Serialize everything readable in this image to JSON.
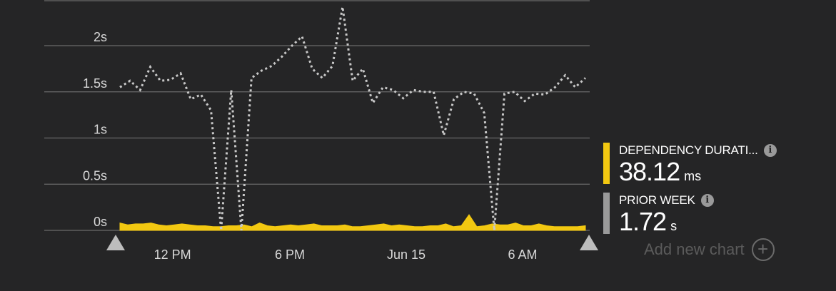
{
  "chart_data": {
    "type": "area",
    "y_tick_labels": [
      "0s",
      "0.5s",
      "1s",
      "1.5s",
      "2s"
    ],
    "y_ticks": [
      0,
      0.5,
      1,
      1.5,
      2
    ],
    "ylim": [
      0,
      2.5
    ],
    "x_tick_labels": [
      "12 PM",
      "6 PM",
      "Jun 15",
      "6 AM"
    ],
    "x_tick_positions": [
      0.113,
      0.365,
      0.615,
      0.865
    ],
    "grid": true,
    "series": [
      {
        "name": "DEPENDENCY DURATI...",
        "style": "area",
        "color": "#f2c811",
        "values": [
          0.08,
          0.06,
          0.07,
          0.07,
          0.08,
          0.06,
          0.05,
          0.06,
          0.07,
          0.06,
          0.05,
          0.05,
          0.04,
          0.04,
          0.05,
          0.05,
          0.06,
          0.04,
          0.08,
          0.05,
          0.04,
          0.05,
          0.06,
          0.05,
          0.06,
          0.07,
          0.05,
          0.05,
          0.05,
          0.06,
          0.04,
          0.04,
          0.05,
          0.06,
          0.07,
          0.05,
          0.06,
          0.05,
          0.04,
          0.04,
          0.05,
          0.05,
          0.07,
          0.04,
          0.05,
          0.17,
          0.04,
          0.05,
          0.07,
          0.06,
          0.06,
          0.08,
          0.05,
          0.05,
          0.07,
          0.05,
          0.04,
          0.04,
          0.04,
          0.04,
          0.05
        ]
      },
      {
        "name": "PRIOR WEEK",
        "style": "dotted-line",
        "color": "#c8c8c8",
        "values": [
          1.55,
          1.62,
          1.52,
          1.77,
          1.62,
          1.63,
          1.7,
          1.42,
          1.47,
          1.3,
          0.0,
          1.52,
          0.0,
          1.65,
          1.73,
          1.78,
          1.88,
          2.0,
          2.1,
          1.75,
          1.65,
          1.78,
          2.42,
          1.62,
          1.75,
          1.38,
          1.55,
          1.52,
          1.43,
          1.52,
          1.5,
          1.5,
          1.03,
          1.42,
          1.5,
          1.48,
          1.27,
          0.0,
          1.48,
          1.5,
          1.4,
          1.48,
          1.47,
          1.55,
          1.68,
          1.55,
          1.65
        ]
      }
    ]
  },
  "legend": {
    "items": [
      {
        "name": "DEPENDENCY DURATI...",
        "value": "38.12",
        "unit": "ms",
        "color": "#f2c811",
        "icon": "info-icon"
      },
      {
        "name": "PRIOR WEEK",
        "value": "1.72",
        "unit": "s",
        "color": "#9a9a9a",
        "icon": "info-icon"
      }
    ]
  },
  "add_chart": {
    "label": "Add new chart",
    "icon": "plus-circle-icon"
  }
}
